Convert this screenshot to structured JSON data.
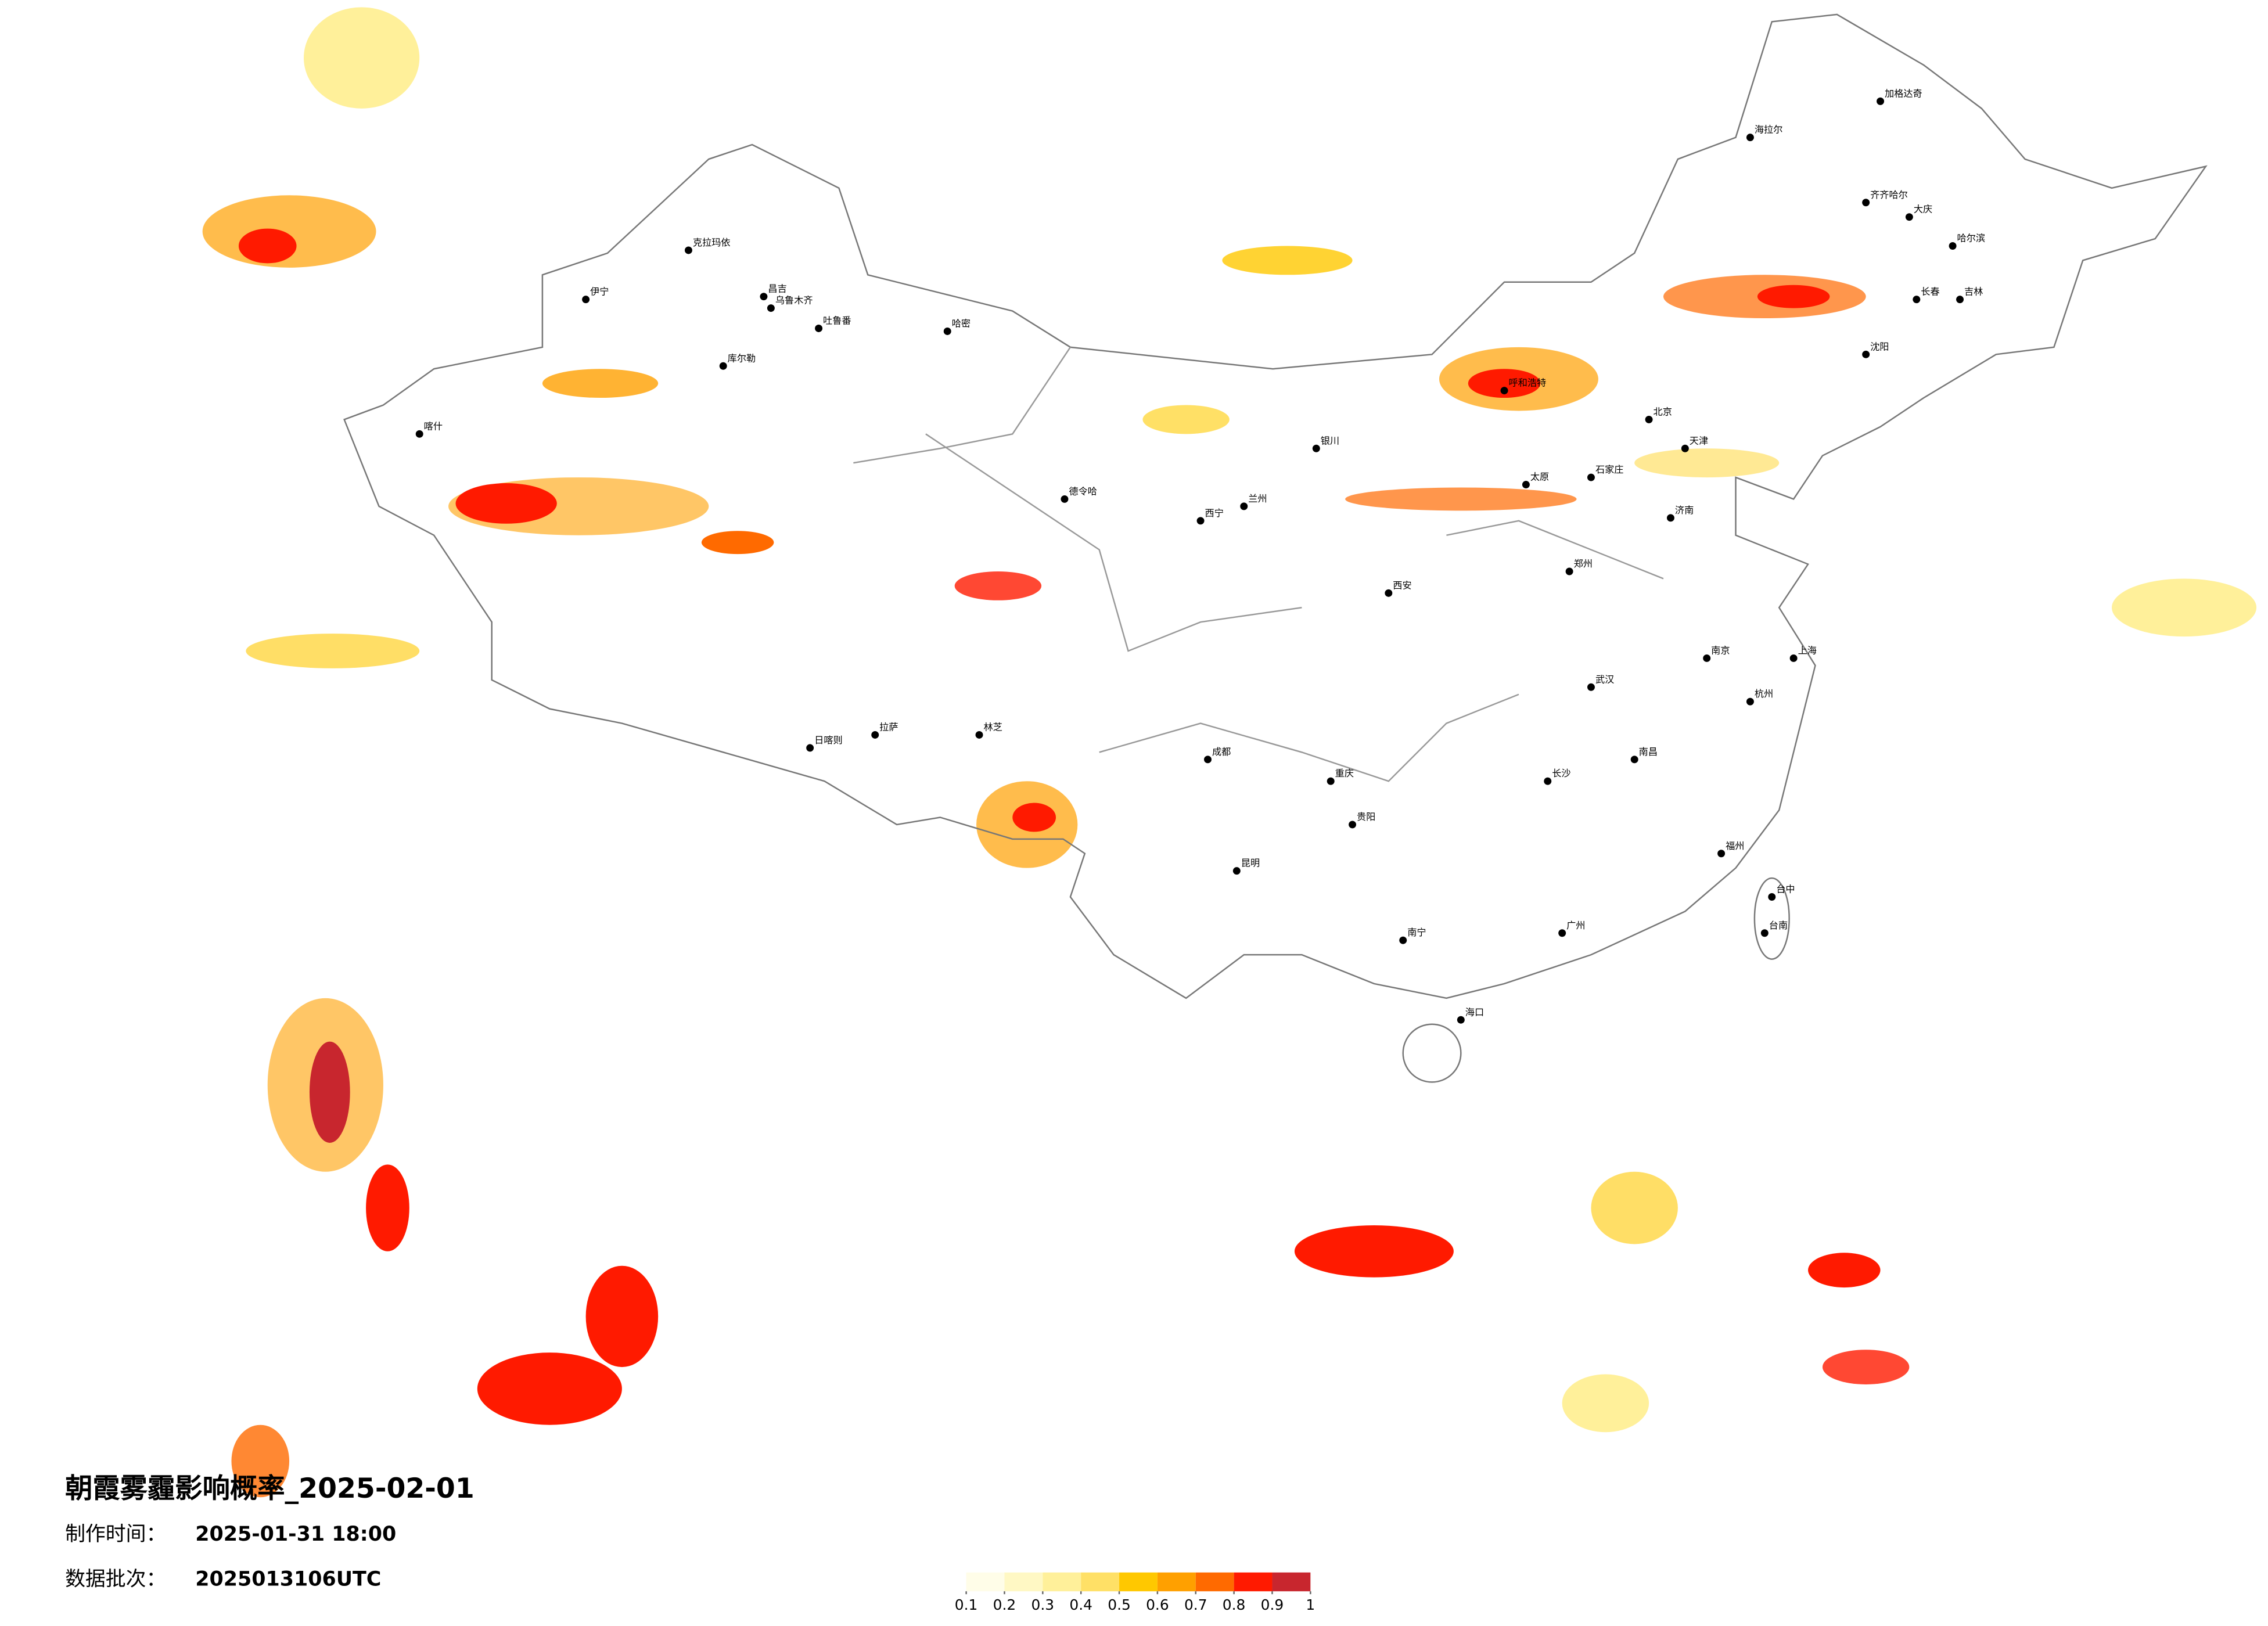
{
  "title": "朝霞雾霾影响概率_2025-02-01",
  "production_time": {
    "label": "制作时间：",
    "value": "2025-01-31 18:00"
  },
  "data_batch": {
    "label": "数据批次：",
    "value": "2025013106UTC"
  },
  "legend": {
    "colors": [
      "#fffde8",
      "#fff8c4",
      "#fff09a",
      "#ffe066",
      "#ffc800",
      "#ffa000",
      "#ff6a00",
      "#ff1a00",
      "#c8262e"
    ],
    "ticks": [
      0.1,
      0.2,
      0.3,
      0.4,
      0.5,
      0.6,
      0.7,
      0.8,
      0.9,
      1
    ]
  },
  "cities": [
    "克拉玛依",
    "伊宁",
    "昌吉",
    "乌鲁木齐",
    "吐鲁番",
    "哈密",
    "库尔勒",
    "喀什",
    "德令哈",
    "日喀则",
    "拉萨",
    "林芝",
    "海拉尔",
    "加格达奇",
    "齐齐哈尔",
    "大庆",
    "哈尔滨",
    "长春",
    "吉林",
    "沈阳",
    "北京",
    "天津",
    "石家庄",
    "太原",
    "郑州",
    "济南",
    "西安",
    "兰州",
    "西宁",
    "银川",
    "呼和浩特",
    "成都",
    "重庆",
    "贵阳",
    "昆明",
    "南宁",
    "广州",
    "长沙",
    "武汉",
    "南昌",
    "杭州",
    "南京",
    "上海",
    "福州",
    "海口",
    "台中",
    "台南"
  ]
}
